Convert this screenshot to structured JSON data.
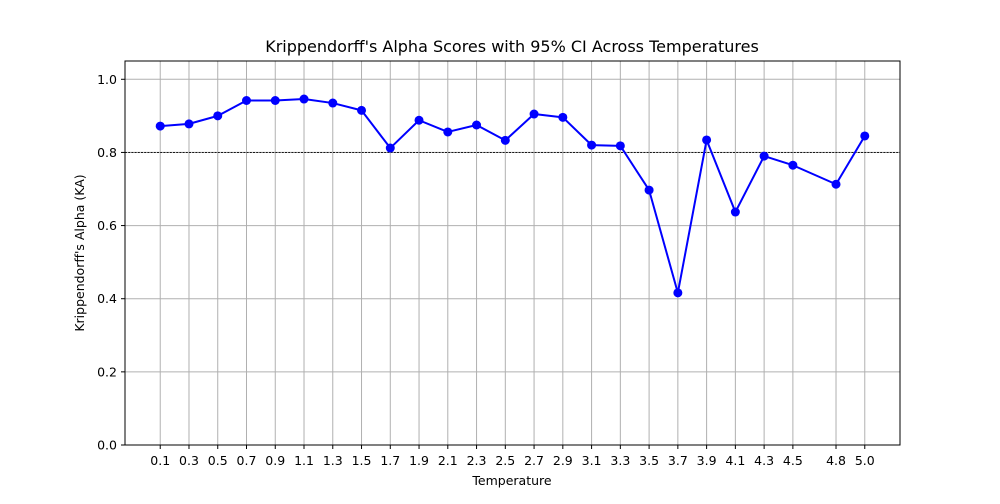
{
  "chart_data": {
    "type": "line",
    "title": "Krippendorff's Alpha Scores with 95% CI Across Temperatures",
    "xlabel": "Temperature",
    "ylabel": "Krippendorff's Alpha (KA)",
    "x": [
      0.1,
      0.3,
      0.5,
      0.7,
      0.9,
      1.1,
      1.3,
      1.5,
      1.7,
      1.9,
      2.1,
      2.3,
      2.5,
      2.7,
      2.9,
      3.1,
      3.3,
      3.5,
      3.7,
      3.9,
      4.1,
      4.3,
      4.5,
      4.8,
      5.0
    ],
    "x_tick_labels": [
      "0.1",
      "0.3",
      "0.5",
      "0.7",
      "0.9",
      "1.1",
      "1.3",
      "1.5",
      "1.7",
      "1.9",
      "2.1",
      "2.3",
      "2.5",
      "2.7",
      "2.9",
      "3.1",
      "3.3",
      "3.5",
      "3.7",
      "3.9",
      "4.1",
      "4.3",
      "4.5",
      "4.8",
      "5.0"
    ],
    "series": [
      {
        "values": [
          0.872,
          0.878,
          0.9,
          0.942,
          0.942,
          0.946,
          0.935,
          0.915,
          0.812,
          0.888,
          0.856,
          0.875,
          0.833,
          0.905,
          0.896,
          0.82,
          0.818,
          0.697,
          0.416,
          0.834,
          0.637,
          0.79,
          0.765,
          0.713,
          0.845
        ],
        "color": "#0000ff",
        "marker": "circle"
      }
    ],
    "reference_line": {
      "y": 0.8,
      "style": "dashed",
      "color": "#000000"
    },
    "xlim": [
      -0.145,
      5.245
    ],
    "ylim": [
      0.0,
      1.05
    ],
    "y_ticks": [
      0.0,
      0.2,
      0.4,
      0.6,
      0.8,
      1.0
    ],
    "y_tick_labels": [
      "0.0",
      "0.2",
      "0.4",
      "0.6",
      "0.8",
      "1.0"
    ],
    "grid": true,
    "grid_color": "#b0b0b0",
    "legend": "none"
  }
}
